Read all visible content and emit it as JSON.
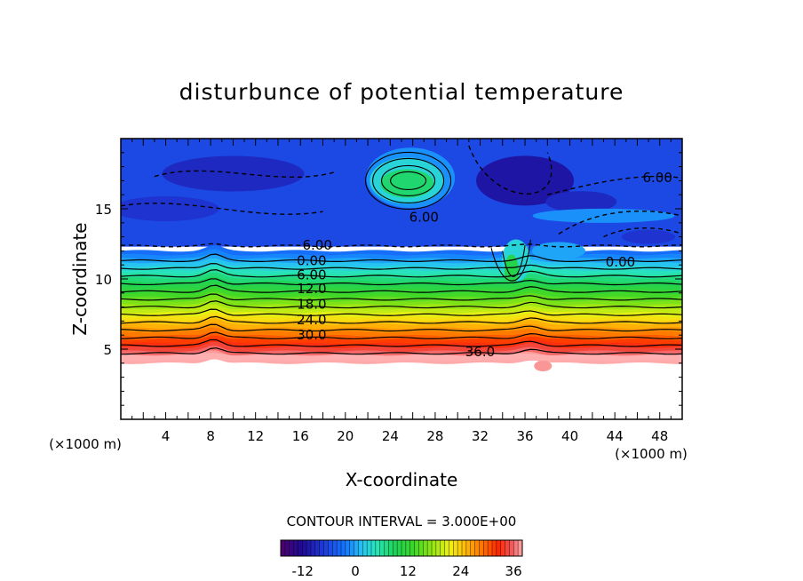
{
  "chart_data": {
    "type": "heatmap",
    "title": "disturbunce of potential temperature",
    "xlabel": "X-coordinate",
    "ylabel": "Z-coordinate",
    "x_unit_label": "(×1000 m)",
    "z_unit_label": "(×1000 m)",
    "xlim": [
      0,
      50
    ],
    "ylim": [
      0,
      20
    ],
    "x_ticks": [
      "4",
      "8",
      "12",
      "16",
      "20",
      "24",
      "28",
      "32",
      "36",
      "40",
      "44",
      "48"
    ],
    "y_ticks": [
      "5",
      "10",
      "15"
    ],
    "contour_interval_text": "CONTOUR INTERVAL =  3.000E+00",
    "contour_labels": [
      {
        "text": "6.00",
        "x": 47.8,
        "z": 17.2
      },
      {
        "text": "6.00",
        "x": 27.0,
        "z": 14.4
      },
      {
        "text": "6.00",
        "x": 17.5,
        "z": 12.4
      },
      {
        "text": "0.00",
        "x": 17.0,
        "z": 11.3
      },
      {
        "text": "0.00",
        "x": 44.5,
        "z": 11.2
      },
      {
        "text": "6.00",
        "x": 17.0,
        "z": 10.3
      },
      {
        "text": "12.0",
        "x": 17.0,
        "z": 9.3
      },
      {
        "text": "18.0",
        "x": 17.0,
        "z": 8.2
      },
      {
        "text": "24.0",
        "x": 17.0,
        "z": 7.1
      },
      {
        "text": "30.0",
        "x": 17.0,
        "z": 6.0
      },
      {
        "text": "36.0",
        "x": 32.0,
        "z": 4.8
      }
    ],
    "colorbar": {
      "min": -17,
      "max": 38,
      "ticks": [
        "-12",
        "0",
        "12",
        "24",
        "36"
      ]
    }
  }
}
